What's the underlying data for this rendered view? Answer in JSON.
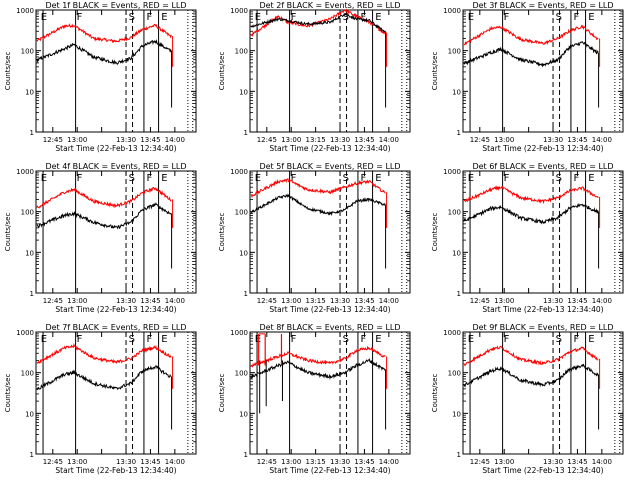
{
  "chart_data": {
    "type": "line",
    "y_scale": "log",
    "ylim": [
      1,
      1000
    ],
    "y_ticks": [
      "1",
      "10",
      "100",
      "1000"
    ],
    "ylabel": "Counts/sec",
    "xlabel": "Start Time (22-Feb-13 12:34:40)",
    "x_ticks_full": [
      "12:45",
      "13:00",
      "13:15",
      "13:30",
      "13:45",
      "14:00"
    ],
    "x_ticks_no_1315": [
      "12:45",
      "13:00",
      "13:30",
      "13:45",
      "14:00"
    ],
    "series_colors": {
      "events": "#000000",
      "lld": "#ff0000"
    },
    "annotation_letters": [
      "E",
      "F",
      "S",
      "F",
      "E"
    ],
    "panels": [
      {
        "title": "Det 1f BLACK = Events, RED = LLD",
        "ticks": "x_ticks_no_1315",
        "profile": "standard",
        "events": [
          60,
          110,
          140,
          70,
          50,
          65,
          130,
          170,
          100
        ],
        "lld": [
          180,
          400,
          420,
          200,
          170,
          210,
          330,
          420,
          230
        ]
      },
      {
        "title": "Det 2f BLACK = Events, RED = LLD",
        "ticks": "x_ticks_full",
        "profile": "flat",
        "events": [
          400,
          600,
          550,
          450,
          500,
          800,
          600,
          550,
          300
        ],
        "lld": [
          250,
          700,
          500,
          400,
          600,
          1000,
          700,
          500,
          280
        ]
      },
      {
        "title": "Det 3f BLACK = Events, RED = LLD",
        "ticks": "x_ticks_no_1315",
        "profile": "standard",
        "events": [
          50,
          90,
          110,
          60,
          45,
          60,
          120,
          160,
          90
        ],
        "lld": [
          150,
          350,
          380,
          190,
          150,
          200,
          300,
          400,
          200
        ]
      },
      {
        "title": "Det 4f BLACK = Events, RED = LLD",
        "ticks": "x_ticks_no_1315",
        "profile": "standard",
        "events": [
          45,
          80,
          90,
          55,
          40,
          55,
          110,
          150,
          90
        ],
        "lld": [
          130,
          300,
          350,
          180,
          140,
          180,
          290,
          380,
          200
        ]
      },
      {
        "title": "Det 5f BLACK = Events, RED = LLD",
        "ticks": "x_ticks_full",
        "profile": "flat",
        "events": [
          100,
          220,
          250,
          120,
          90,
          110,
          180,
          200,
          150
        ],
        "lld": [
          250,
          550,
          600,
          350,
          300,
          400,
          500,
          550,
          300
        ]
      },
      {
        "title": "Det 6f BLACK = Events, RED = LLD",
        "ticks": "x_ticks_no_1315",
        "profile": "standard",
        "events": [
          60,
          120,
          130,
          70,
          55,
          70,
          120,
          150,
          100
        ],
        "lld": [
          180,
          350,
          400,
          220,
          180,
          220,
          320,
          380,
          230
        ]
      },
      {
        "title": "Det 7f BLACK = Events, RED = LLD",
        "ticks": "x_ticks_no_1315",
        "profile": "standard",
        "events": [
          40,
          90,
          100,
          55,
          40,
          55,
          110,
          140,
          80
        ],
        "lld": [
          180,
          400,
          450,
          230,
          180,
          220,
          350,
          420,
          250
        ]
      },
      {
        "title": "Det 8f BLACK = Events, RED = LLD",
        "ticks": "x_ticks_full",
        "profile": "spiky",
        "events": [
          80,
          150,
          180,
          100,
          80,
          100,
          150,
          200,
          120
        ],
        "lld": [
          150,
          250,
          300,
          200,
          170,
          220,
          350,
          400,
          250
        ]
      },
      {
        "title": "Det 9f BLACK = Events, RED = LLD",
        "ticks": "x_ticks_no_1315",
        "profile": "standard",
        "events": [
          50,
          110,
          130,
          65,
          50,
          65,
          120,
          150,
          90
        ],
        "lld": [
          160,
          380,
          420,
          210,
          170,
          210,
          320,
          400,
          220
        ]
      }
    ]
  }
}
